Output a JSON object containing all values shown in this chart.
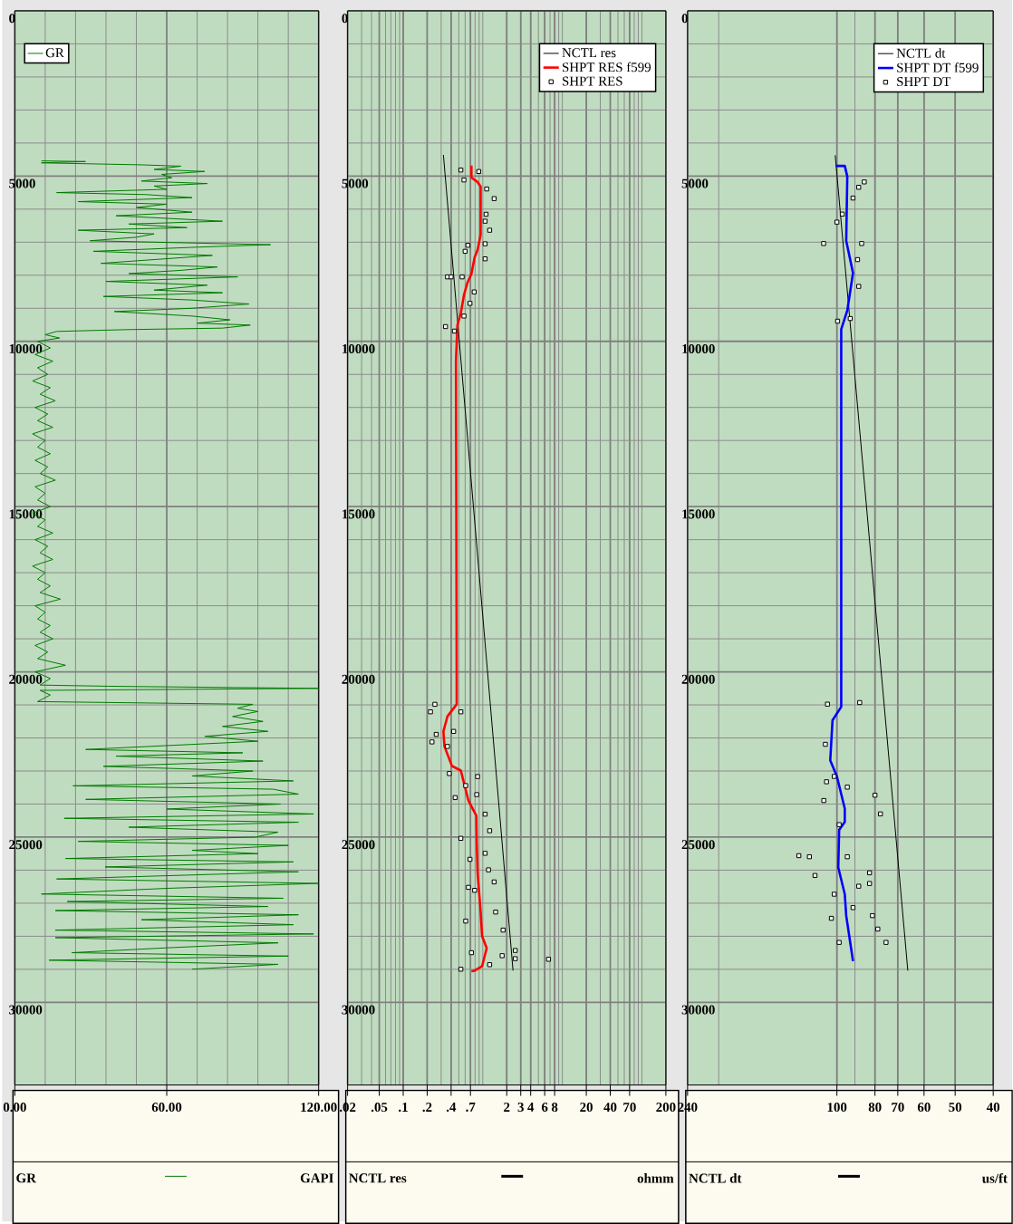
{
  "chart_data": [
    {
      "type": "line",
      "xlabel": "GR",
      "annotations": [
        "GAPI"
      ],
      "xlim": [
        0,
        120
      ],
      "xticks": [
        {
          "value": 0,
          "label": "0.00"
        },
        {
          "value": 60,
          "label": "60.00"
        },
        {
          "value": 120,
          "label": "120.00"
        }
      ],
      "ylim": [
        32500,
        0
      ],
      "yticks": [
        0,
        5000,
        10000,
        15000,
        20000,
        25000,
        30000
      ],
      "grid": true,
      "legend": "top left",
      "series": [
        {
          "name": "GR",
          "color": "#007a00",
          "x": [
            10.5,
            27.9,
            10.5,
            50,
            65.6,
            55,
            75,
            58,
            62,
            50,
            76,
            55,
            60,
            16.5,
            52,
            70,
            25,
            60,
            48,
            70,
            40,
            82,
            45,
            68,
            25,
            55,
            48,
            29.7,
            101,
            72,
            31,
            78,
            60,
            34,
            80,
            66,
            45,
            88,
            36,
            76,
            55,
            82,
            35,
            70,
            92.5,
            70,
            39.3,
            70,
            85,
            72,
            93,
            82,
            44.6,
            16.5,
            12,
            17.7,
            9,
            14,
            8,
            15,
            9,
            13,
            7,
            14,
            10,
            16,
            8,
            13,
            9,
            15,
            7,
            12,
            9,
            14,
            8,
            13,
            10,
            16,
            8,
            12,
            9,
            14,
            7,
            12,
            9,
            15,
            8,
            13,
            10,
            15,
            7,
            12,
            9,
            14,
            10,
            18,
            8,
            12,
            9,
            14,
            10,
            15,
            8,
            13,
            9,
            20,
            8,
            14,
            10,
            36.9,
            120,
            10,
            14,
            9,
            94,
            88,
            96,
            86,
            98,
            82,
            100,
            75,
            96,
            28,
            90,
            40,
            98,
            35,
            94,
            70,
            110,
            23,
            102,
            112,
            28,
            105,
            60,
            118,
            19.5,
            112,
            45,
            104,
            95,
            25,
            108,
            70,
            96,
            20,
            110,
            35.7,
            112,
            16.5,
            120,
            60,
            10.5,
            106,
            20.7,
            100,
            16,
            112,
            50,
            110,
            16,
            118,
            16,
            104,
            60,
            22.5,
            108,
            13.5,
            104,
            70
          ],
          "values": [
            4540,
            4560,
            4600,
            4660,
            4700,
            4800,
            4860,
            4950,
            5050,
            5150,
            5226,
            5300,
            5400,
            5500,
            5560,
            5650,
            5773,
            5850,
            5950,
            6092,
            6200,
            6365,
            6450,
            6560,
            6638,
            6750,
            6850,
            6957,
            7076,
            7150,
            7276,
            7400,
            7500,
            7640,
            7750,
            7850,
            7950,
            8050,
            8187,
            8300,
            8450,
            8530,
            8642,
            8750,
            8870,
            9000,
            9098,
            9235,
            9350,
            9450,
            9508,
            9600,
            9645,
            9700,
            9800,
            9900,
            10000,
            10200,
            10400,
            10600,
            10800,
            11000,
            11200,
            11400,
            11600,
            11800,
            12000,
            12200,
            12400,
            12600,
            12800,
            13000,
            13200,
            13400,
            13600,
            13800,
            14000,
            14200,
            14400,
            14600,
            14800,
            15000,
            15200,
            15400,
            15600,
            15800,
            16000,
            16200,
            16400,
            16600,
            16800,
            17000,
            17200,
            17400,
            17600,
            17800,
            18000,
            18200,
            18400,
            18600,
            18800,
            19000,
            19200,
            19400,
            19600,
            19800,
            20000,
            20200,
            20400,
            20436,
            20500,
            20560,
            20700,
            20900,
            20982,
            21100,
            21200,
            21350,
            21500,
            21650,
            21800,
            21950,
            22100,
            22348,
            22450,
            22550,
            22700,
            22858,
            23000,
            23150,
            23300,
            23449,
            23550,
            23700,
            23858,
            24000,
            24150,
            24300,
            24432,
            24550,
            24700,
            24850,
            25000,
            25129,
            25250,
            25400,
            25500,
            25648,
            25750,
            25903,
            26050,
            26267,
            26400,
            26550,
            26722,
            26850,
            26950,
            27100,
            27223,
            27350,
            27500,
            27650,
            27815,
            27930,
            28042,
            28200,
            28350,
            28497,
            28600,
            28724,
            28850,
            28997
          ]
        }
      ]
    },
    {
      "type": "line",
      "xlabel": "NCTL res",
      "annotations": [
        "ohmm"
      ],
      "log": "x",
      "xlim": [
        0.02,
        200
      ],
      "xticks": [
        {
          "value": 0.02,
          "label": ".02"
        },
        {
          "value": 0.05,
          "label": ".05"
        },
        {
          "value": 0.1,
          "label": ".1"
        },
        {
          "value": 0.2,
          "label": ".2"
        },
        {
          "value": 0.4,
          "label": ".4"
        },
        {
          "value": 0.7,
          "label": ".7"
        },
        2,
        3,
        4,
        6,
        8,
        20,
        40,
        70,
        200
      ],
      "ylim": [
        32500,
        0
      ],
      "yticks": [
        0,
        5000,
        10000,
        15000,
        20000,
        25000,
        30000
      ],
      "grid": true,
      "legend": "top right",
      "series": [
        {
          "name": "NCTL res",
          "color": "#000000",
          "x": [
            0.32,
            2.4
          ],
          "values": [
            4360,
            29040
          ]
        },
        {
          "name": "SHPT RES f599",
          "color": "#ff0000",
          "x": [
            0.72,
            0.72,
            0.86,
            0.94,
            0.94,
            0.86,
            0.79,
            0.72,
            0.64,
            0.58,
            0.53,
            0.48,
            0.46,
            0.47,
            0.47,
            0.36,
            0.32,
            0.33,
            0.41,
            0.53,
            0.66,
            0.83,
            0.84,
            0.86,
            0.94,
            0.98,
            1.12,
            0.98,
            0.79,
            0.72
          ],
          "values": [
            4680,
            5044,
            5180,
            5317,
            6774,
            7230,
            7458,
            7959,
            8232,
            8596,
            9143,
            9508,
            10600,
            20435,
            20982,
            21346,
            21801,
            22257,
            22850,
            22986,
            23897,
            24352,
            25172,
            26083,
            27267,
            27996,
            28360,
            28906,
            29041,
            29060
          ]
        },
        {
          "name": "SHPT RES",
          "type": "scatter",
          "marker": "square",
          "color": "#000000",
          "x": [
            0.53,
            0.58,
            0.89,
            1.12,
            1.39,
            1.1,
            1.07,
            1.22,
            0.65,
            1.07,
            0.6,
            1.07,
            0.36,
            0.4,
            0.55,
            0.78,
            0.69,
            0.58,
            0.34,
            0.44,
            0.22,
            0.25,
            0.23,
            0.26,
            0.43,
            0.53,
            0.86,
            0.45,
            0.84,
            1.07,
            1.22,
            0.53,
            1.07,
            0.69,
            1.18,
            1.39,
            0.66,
            0.79,
            1.45,
            0.61,
            1.8,
            0.72,
            1.75,
            0.53,
            1.22,
            0.36,
            0.38,
            0.61,
            2.56,
            2.56,
            6.7
          ],
          "values": [
            4817,
            5117,
            4862,
            5390,
            5681,
            6155,
            6365,
            6638,
            7094,
            7049,
            7276,
            7504,
            8050,
            8050,
            8050,
            8505,
            8851,
            9235,
            9554,
            9690,
            21210,
            20982,
            22120,
            21892,
            21801,
            21210,
            23168,
            23805,
            23714,
            24306,
            24807,
            25037,
            25490,
            25672,
            25991,
            26356,
            26520,
            26610,
            27267,
            27540,
            27813,
            28497,
            28588,
            28997,
            28860,
            22257,
            23077,
            23441,
            28430,
            28678,
            28696
          ]
        }
      ]
    },
    {
      "type": "line",
      "xlabel": "NCTL dt",
      "annotations": [
        "us/ft"
      ],
      "log": "x",
      "xlim": [
        240,
        40
      ],
      "xticks": [
        240,
        100,
        80,
        70,
        60,
        50,
        40
      ],
      "ylim": [
        32500,
        0
      ],
      "yticks": [
        0,
        5000,
        10000,
        15000,
        20000,
        25000,
        30000
      ],
      "grid": true,
      "legend": "top right",
      "series": [
        {
          "name": "NCTL dt",
          "color": "#000000",
          "x": [
            101,
            66
          ],
          "values": [
            4370,
            29040
          ]
        },
        {
          "name": "SHPT DT f599",
          "color": "#0000ff",
          "x": [
            100.7,
            95.5,
            94.1,
            94.7,
            91.0,
            94.1,
            97.5,
            97.5,
            102.6,
            104,
            100,
            95.5,
            95.5,
            98.7,
            99.2,
            95.5,
            94.7,
            92.5,
            91.0
          ],
          "values": [
            4691,
            4691,
            5015,
            6960,
            7932,
            9066,
            9633,
            21058,
            21463,
            22678,
            23164,
            24136,
            24541,
            24784,
            25918,
            26728,
            27376,
            28186,
            28753
          ]
        },
        {
          "name": "SHPT DT",
          "type": "scatter",
          "marker": "square",
          "color": "#000000",
          "x": [
            85.2,
            88.0,
            100,
            108.1,
            86.5,
            88.6,
            88.0,
            99.6,
            92.5,
            91,
            96.9,
            87.5,
            105.7,
            107,
            106.3,
            80.0,
            77.5,
            108,
            125,
            117.5,
            113.7,
            82.6,
            82.6,
            88,
            103.3,
            81.2,
            75.0,
            78.7,
            98.7,
            94.1,
            101.6,
            94.1,
            101.6,
            98.7,
            91
          ],
          "values": [
            5177,
            5339,
            6393,
            7041,
            7041,
            7527,
            8337,
            9390,
            9309,
            5664,
            6150,
            20929,
            20977,
            22192,
            23326,
            23731,
            24298,
            23893,
            25562,
            25594,
            26161,
            26080,
            26404,
            26485,
            27457,
            27376,
            28186,
            27781,
            28186,
            25594,
            26728,
            23488,
            23164,
            24622,
            27133
          ]
        }
      ]
    }
  ]
}
